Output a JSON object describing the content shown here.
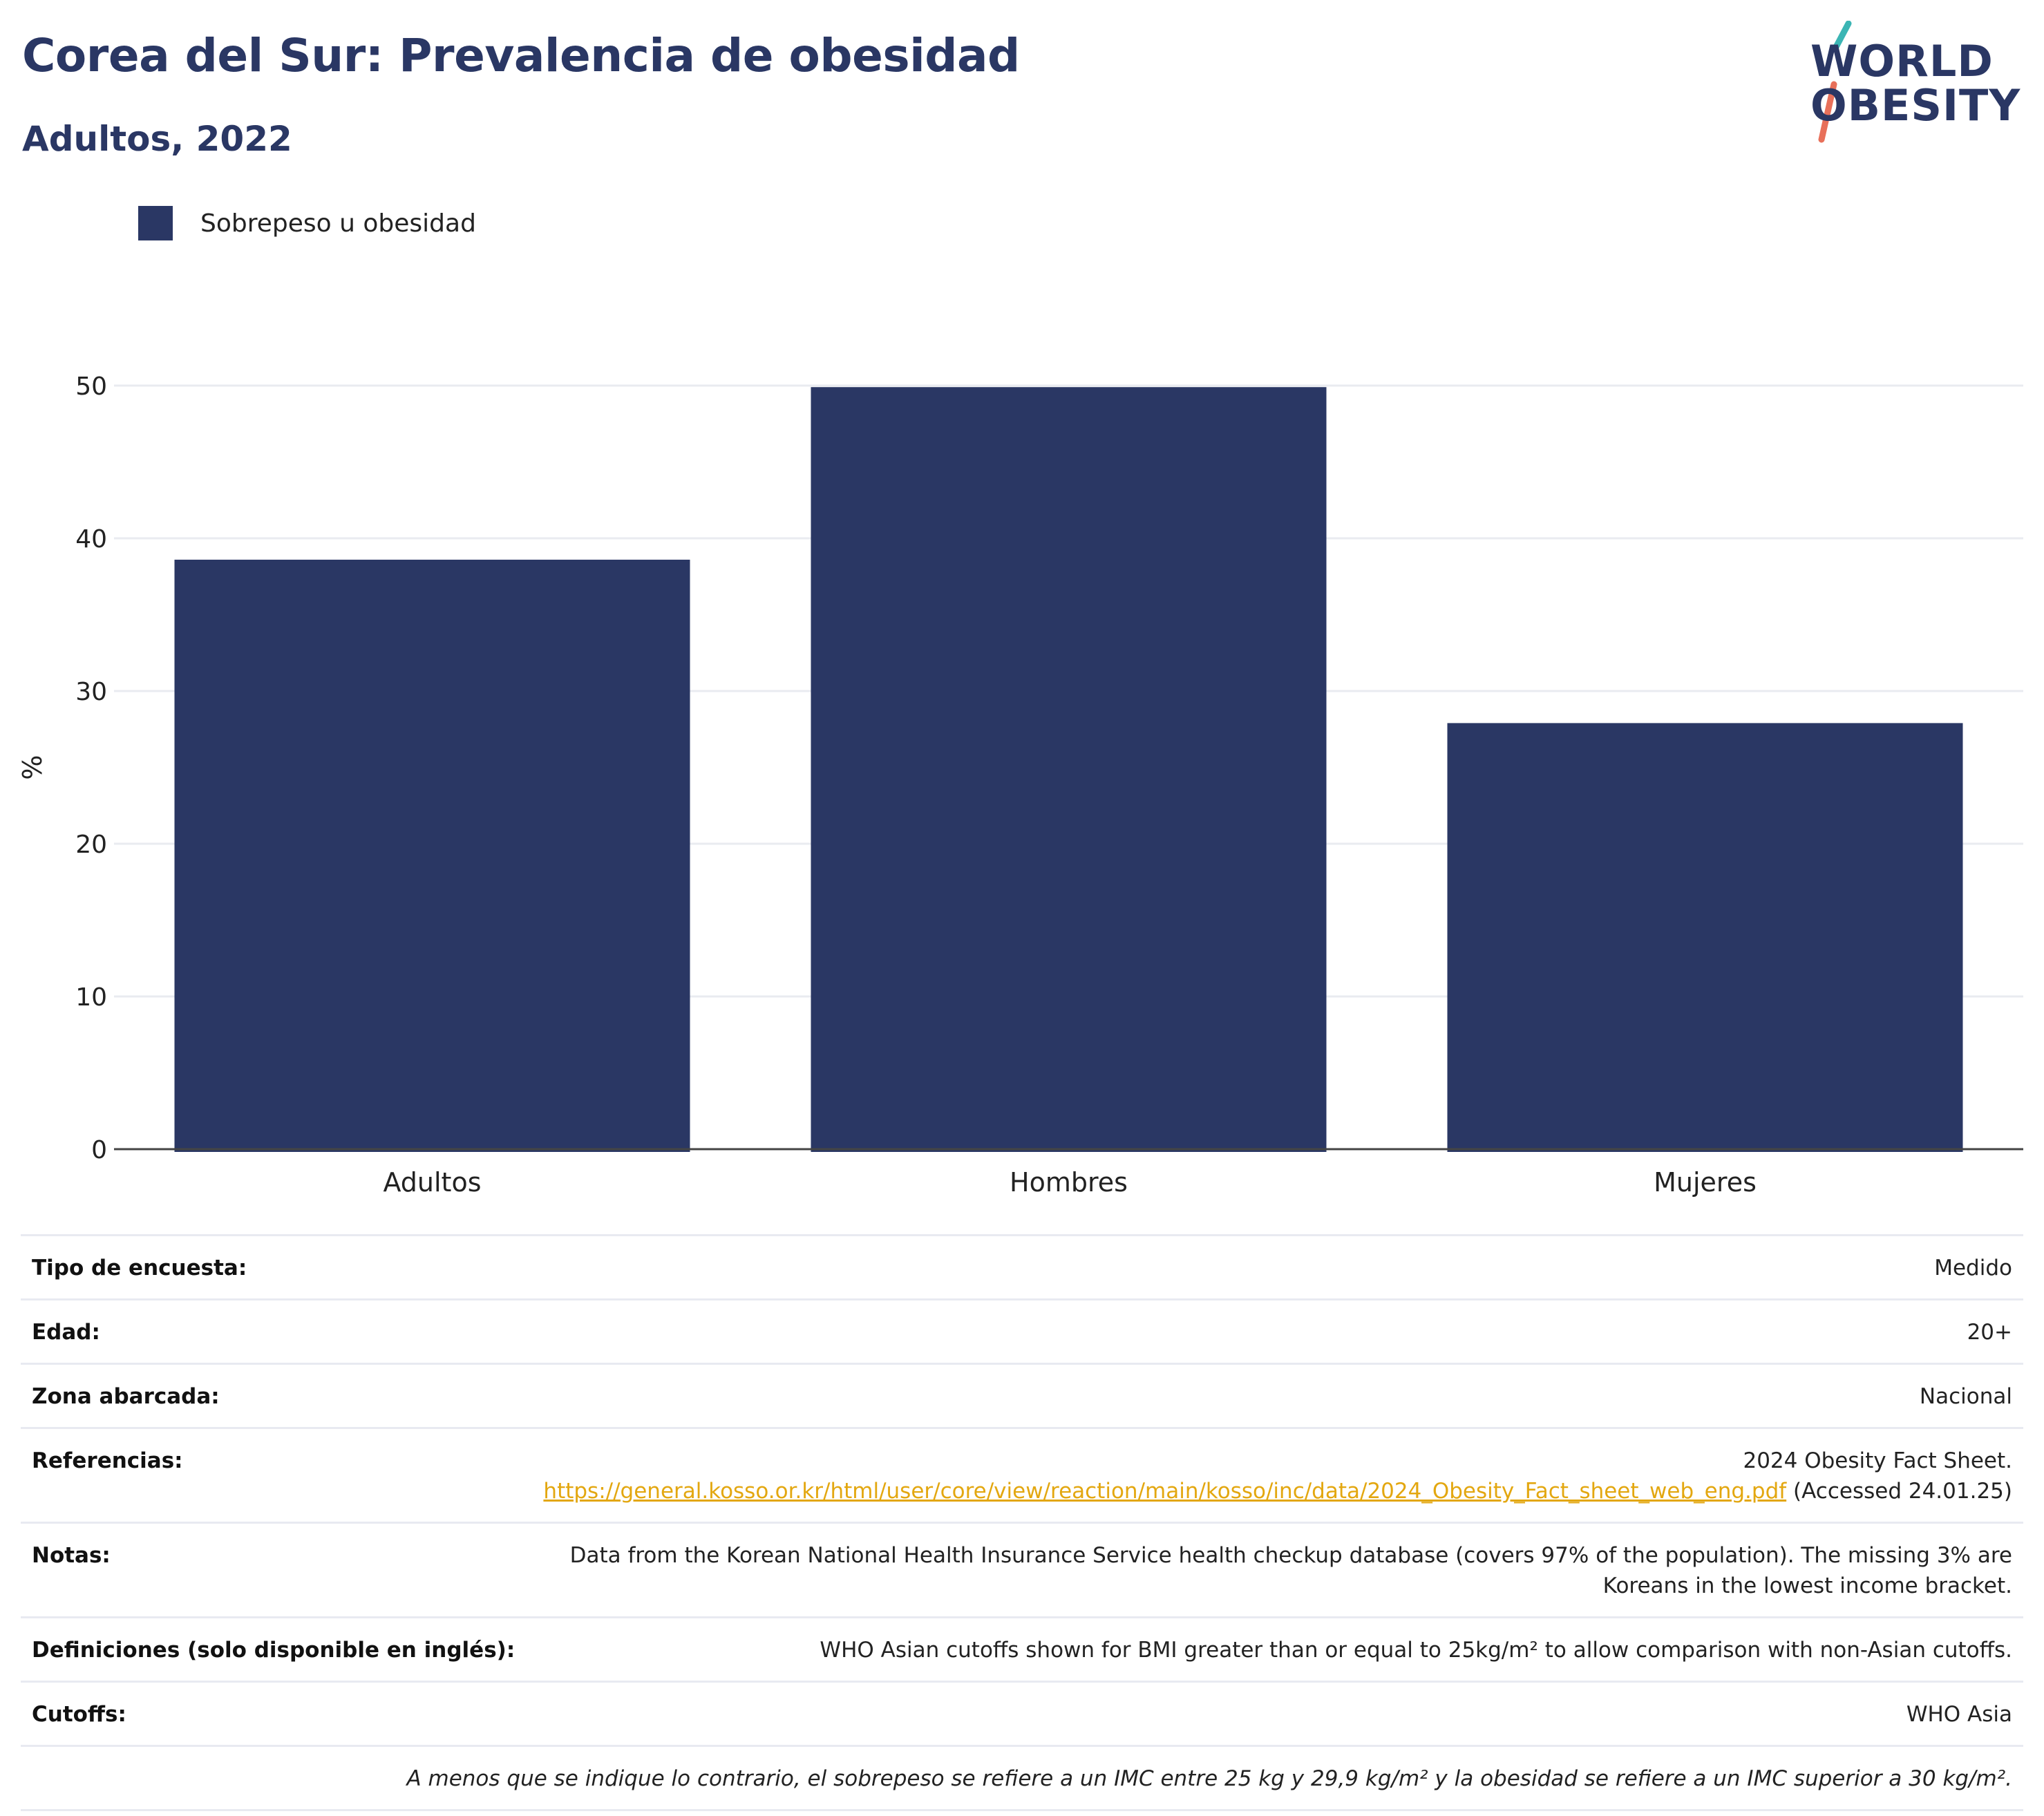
{
  "header": {
    "title": "Corea del Sur: Prevalencia de obesidad",
    "subtitle": "Adultos, 2022"
  },
  "logo": {
    "line1": "WORLD",
    "line2": "OBESITY",
    "colors": {
      "text": "#2a3764",
      "slash_top": "#3bb5b4",
      "slash_bottom": "#e8705a"
    }
  },
  "legend": {
    "items": [
      {
        "label": "Sobrepeso u obesidad",
        "color": "#2a3764"
      }
    ]
  },
  "chart_data": {
    "type": "bar",
    "categories": [
      "Adultos",
      "Hombres",
      "Mujeres"
    ],
    "series": [
      {
        "name": "Sobrepeso u obesidad",
        "values": [
          38.6,
          49.9,
          27.9
        ],
        "color": "#2a3764"
      }
    ],
    "ylabel": "%",
    "xlabel": "",
    "ylim": [
      0,
      50
    ],
    "yticks": [
      0,
      10,
      20,
      30,
      40,
      50
    ],
    "grid": true,
    "legend_position": "top-left"
  },
  "info": {
    "rows": [
      {
        "key": "Tipo de encuesta:",
        "value": "Medido"
      },
      {
        "key": "Edad:",
        "value": "20+"
      },
      {
        "key": "Zona abarcada:",
        "value": "Nacional"
      },
      {
        "key": "Referencias:",
        "value_pre": "2024 Obesity Fact Sheet.",
        "link": "https://general.kosso.or.kr/html/user/core/view/reaction/main/kosso/inc/data/2024_Obesity_Fact_sheet_web_eng.pdf",
        "value_post": "(Accessed 24.01.25)"
      },
      {
        "key": "Notas:",
        "value": "Data from the Korean National Health Insurance Service health checkup database (covers 97% of the population). The missing 3% are Koreans in the lowest income bracket."
      },
      {
        "key": "Definiciones (solo disponible en inglés):",
        "value": "WHO Asian cutoffs shown for BMI greater than or equal to 25kg/m² to allow comparison with non-Asian cutoffs."
      },
      {
        "key": "Cutoffs:",
        "value": "WHO Asia"
      }
    ],
    "footnote": "A menos que se indique lo contrario, el sobrepeso se refiere a un IMC entre 25 kg y 29,9 kg/m² y la obesidad se refiere a un IMC superior a 30 kg/m²."
  }
}
